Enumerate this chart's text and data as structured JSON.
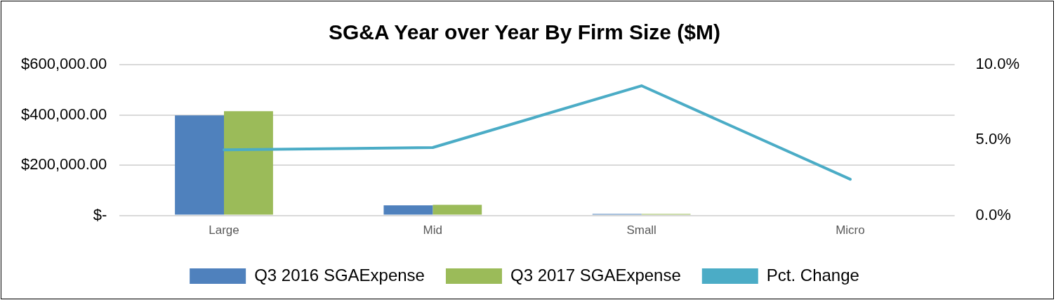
{
  "chart_data": {
    "type": "bar",
    "title": "SG&A Year over Year By Firm Size ($M)",
    "categories": [
      "Large",
      "Mid",
      "Small",
      "Micro"
    ],
    "series": [
      {
        "name": "Q3 2016 SGAExpense",
        "color": "#4f81bd",
        "values": [
          398000,
          40000,
          6000,
          null
        ]
      },
      {
        "name": "Q3 2017 SGAExpense",
        "color": "#9bbb59",
        "values": [
          415000,
          42000,
          6000,
          null
        ]
      },
      {
        "name": "Pct. Change",
        "type": "line",
        "axis": "y2",
        "color": "#4bacc6",
        "values": [
          4.35,
          4.5,
          8.6,
          2.4
        ]
      }
    ],
    "ylim": [
      0,
      600000
    ],
    "yticks": [
      {
        "value": 0,
        "label": "$-"
      },
      {
        "value": 200000,
        "label": "$200,000.00"
      },
      {
        "value": 400000,
        "label": "$400,000.00"
      },
      {
        "value": 600000,
        "label": "$600,000.00"
      }
    ],
    "y2lim": [
      0,
      10
    ],
    "y2ticks": [
      {
        "value": 0,
        "label": "0.0%"
      },
      {
        "value": 5,
        "label": "5.0%"
      },
      {
        "value": 10,
        "label": "10.0%"
      }
    ],
    "grid": "y",
    "legend": "bottom",
    "marker": "none",
    "line_style": "solid"
  }
}
